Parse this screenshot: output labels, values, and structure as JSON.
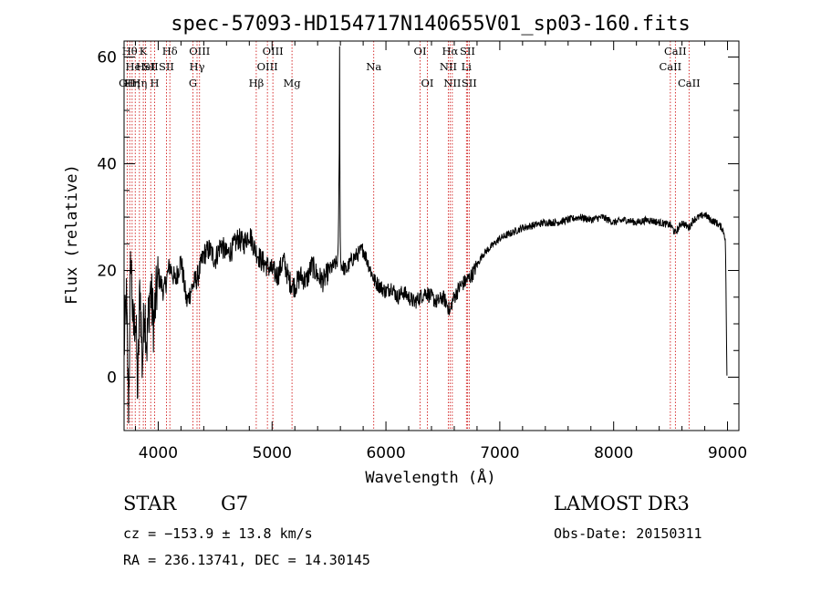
{
  "chart_data": {
    "type": "line",
    "title": "spec-57093-HD154717N140655V01_sp03-160.fits",
    "xlabel": "Wavelength (Å)",
    "ylabel": "Flux (relative)",
    "xlim": [
      3700,
      9100
    ],
    "ylim": [
      -10,
      63
    ],
    "xticks": [
      4000,
      5000,
      6000,
      7000,
      8000,
      9000
    ],
    "yticks": [
      0,
      20,
      40,
      60
    ],
    "grid": false,
    "series": [
      {
        "x": [
          3700,
          3720,
          3740,
          3760,
          3780,
          3800,
          3820,
          3840,
          3860,
          3880,
          3900,
          3930,
          3960,
          4000,
          4050,
          4100,
          4150,
          4200,
          4250,
          4300,
          4350,
          4400,
          4450,
          4500,
          4550,
          4600,
          4650,
          4700,
          4750,
          4800,
          4850,
          4900,
          4950,
          5000,
          5050,
          5100,
          5150,
          5200,
          5250,
          5300,
          5350,
          5400,
          5450,
          5500,
          5550,
          5580,
          5590,
          5593,
          5596,
          5600,
          5610,
          5650,
          5700,
          5750,
          5800,
          5850,
          5900,
          5950,
          6000,
          6050,
          6100,
          6150,
          6200,
          6250,
          6300,
          6350,
          6400,
          6450,
          6500,
          6530,
          6550,
          6563,
          6580,
          6600,
          6650,
          6700,
          6750,
          6800,
          6850,
          6900,
          6950,
          7000,
          7100,
          7200,
          7300,
          7400,
          7500,
          7600,
          7700,
          7800,
          7900,
          8000,
          8100,
          8200,
          8300,
          8400,
          8500,
          8542,
          8600,
          8662,
          8700,
          8750,
          8800,
          8850,
          8900,
          8950,
          8970,
          8980,
          8985,
          8990,
          8995
        ],
        "y": [
          5,
          15,
          -6,
          24,
          8,
          12,
          -3,
          18,
          2,
          14,
          6,
          17,
          10,
          19,
          16,
          21,
          18,
          22,
          14,
          17,
          19,
          23,
          24,
          22,
          25,
          23,
          24,
          26,
          25,
          27,
          24,
          22,
          21,
          20,
          19,
          22,
          18,
          17,
          19,
          18,
          21,
          19,
          18,
          20,
          21,
          22,
          42,
          62,
          40,
          22,
          21,
          20,
          22,
          23,
          24,
          21,
          18,
          17,
          16,
          17,
          15,
          16,
          15,
          14,
          15,
          16,
          15,
          14,
          15,
          14,
          13,
          12,
          14,
          15,
          17,
          18,
          19,
          21,
          23,
          24,
          25,
          26,
          27,
          28,
          28.5,
          29,
          29,
          29.5,
          30,
          29.5,
          30,
          29,
          29.5,
          29,
          29.5,
          29,
          28.5,
          27,
          29,
          28,
          29.5,
          30,
          30.5,
          29.5,
          29,
          28,
          27,
          26,
          20,
          10,
          0
        ]
      }
    ],
    "line_markers": [
      {
        "wl": 3727,
        "label": "OII",
        "row": 2
      },
      {
        "wl": 3750,
        "label": "Hθ",
        "row": 0
      },
      {
        "wl": 3771,
        "label": "Hη",
        "row": 2
      },
      {
        "wl": 3798,
        "label": "HeI",
        "row": 1
      },
      {
        "wl": 3835,
        "label": "Hη",
        "row": 2
      },
      {
        "wl": 3869,
        "label": "K",
        "row": 0
      },
      {
        "wl": 3889,
        "label": "HeI",
        "row": 1
      },
      {
        "wl": 3934,
        "label": "SII",
        "row": 1
      },
      {
        "wl": 3969,
        "label": "H",
        "row": 2
      },
      {
        "wl": 4102,
        "label": "Hδ",
        "row": 0
      },
      {
        "wl": 4072,
        "label": "SII",
        "row": 1
      },
      {
        "wl": 4305,
        "label": "G",
        "row": 2
      },
      {
        "wl": 4341,
        "label": "Hγ",
        "row": 1
      },
      {
        "wl": 4363,
        "label": "OIII",
        "row": 0
      },
      {
        "wl": 4861,
        "label": "Hβ",
        "row": 2
      },
      {
        "wl": 4959,
        "label": "OIII",
        "row": 1
      },
      {
        "wl": 5007,
        "label": "OIII",
        "row": 0
      },
      {
        "wl": 5175,
        "label": "Mg",
        "row": 2
      },
      {
        "wl": 5893,
        "label": "Na",
        "row": 1
      },
      {
        "wl": 6300,
        "label": "OI",
        "row": 0
      },
      {
        "wl": 6364,
        "label": "OI",
        "row": 2
      },
      {
        "wl": 6548,
        "label": "NII",
        "row": 1
      },
      {
        "wl": 6563,
        "label": "Hα",
        "row": 0
      },
      {
        "wl": 6583,
        "label": "NII",
        "row": 2
      },
      {
        "wl": 6707,
        "label": "Li",
        "row": 1
      },
      {
        "wl": 6716,
        "label": "SII",
        "row": 0
      },
      {
        "wl": 6731,
        "label": "SII",
        "row": 2
      },
      {
        "wl": 8498,
        "label": "CaII",
        "row": 1
      },
      {
        "wl": 8542,
        "label": "CaII",
        "row": 0
      },
      {
        "wl": 8662,
        "label": "CaII",
        "row": 2
      }
    ]
  },
  "info": {
    "object_class": "STAR",
    "subclass": "G7",
    "survey": "LAMOST DR3",
    "redshift_text": "cz = −153.9 ± 13.8 km/s",
    "obs_date": "Obs-Date: 20150311",
    "coordinates": "RA = 236.13741, DEC =  14.30145"
  },
  "colors": {
    "spectrum": "#000000",
    "marker_line": "#cc0000",
    "axis": "#000000"
  }
}
